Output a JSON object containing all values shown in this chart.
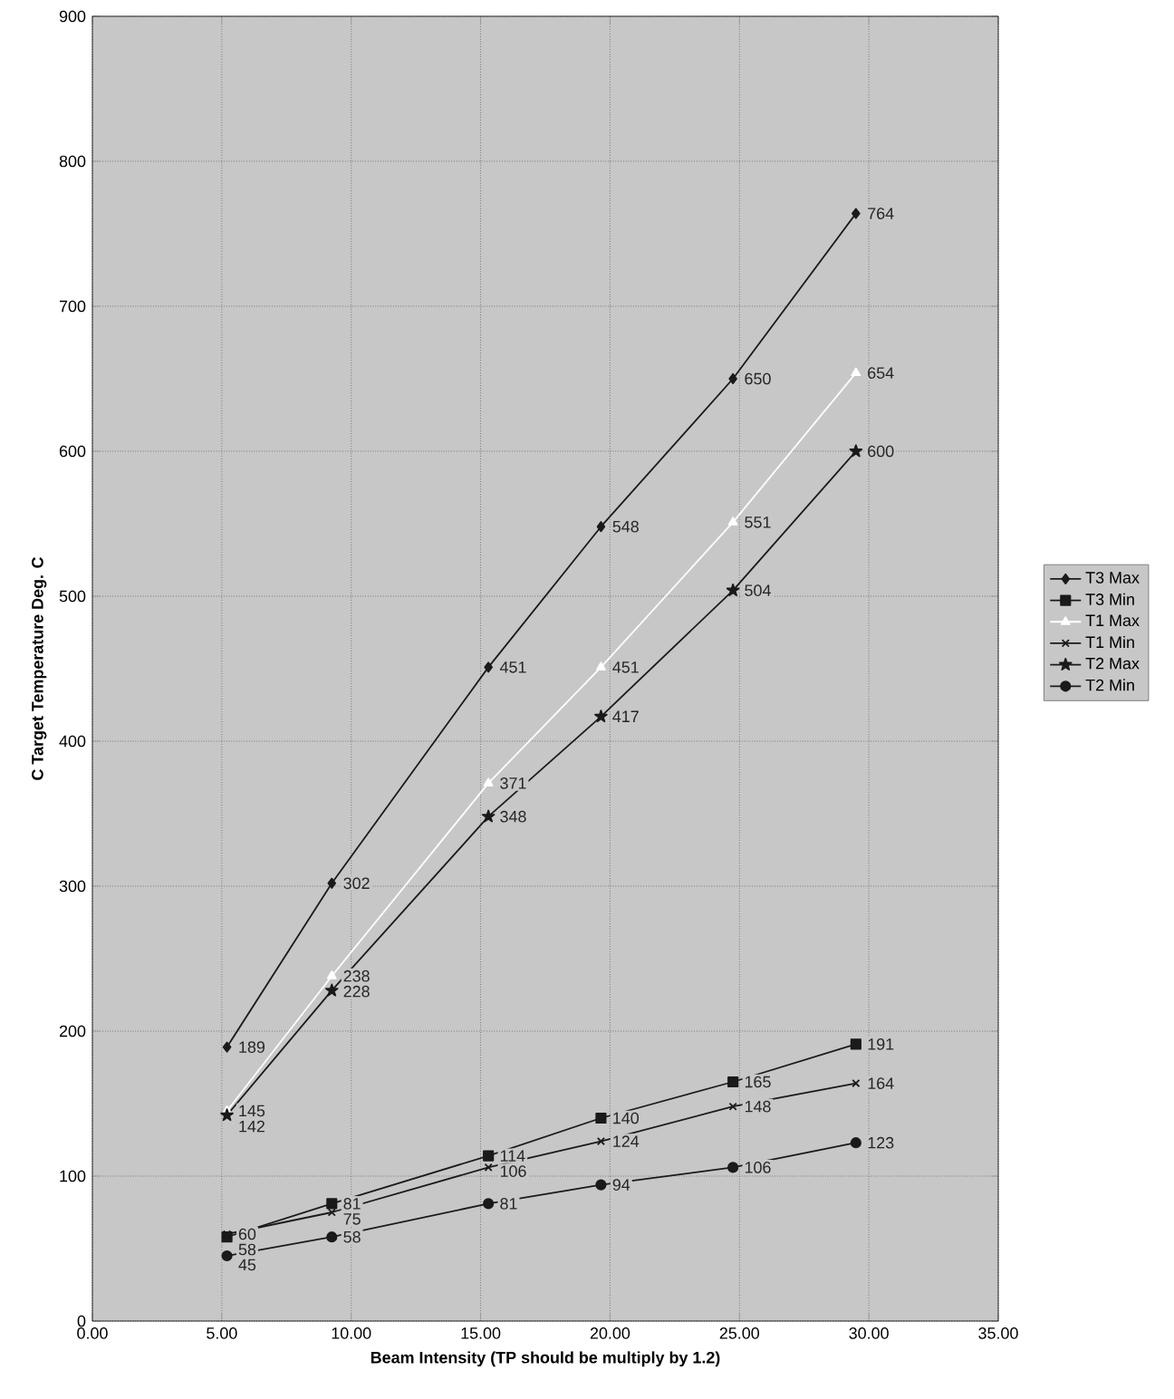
{
  "chart_data": {
    "type": "line",
    "xlabel": "Beam Intensity (TP should be multiply by 1.2)",
    "ylabel": "C Target Temperature Deg. C",
    "x": [
      5.2,
      9.25,
      15.3,
      19.65,
      24.75,
      29.5
    ],
    "series": [
      {
        "name": "T3 Max",
        "color": "#1a1a1a",
        "marker": "diamond",
        "values": [
          189,
          302,
          451,
          548,
          650,
          764
        ]
      },
      {
        "name": "T3 Min",
        "color": "#1a1a1a",
        "marker": "square",
        "values": [
          58,
          81,
          114,
          140,
          165,
          191
        ]
      },
      {
        "name": "T1 Max",
        "color": "#ffffff",
        "marker": "triangle",
        "values": [
          145,
          238,
          371,
          451,
          551,
          654
        ]
      },
      {
        "name": "T1 Min",
        "color": "#1a1a1a",
        "marker": "cross",
        "values": [
          60,
          75,
          106,
          124,
          148,
          164
        ]
      },
      {
        "name": "T2 Max",
        "color": "#1a1a1a",
        "marker": "star",
        "values": [
          142,
          228,
          348,
          417,
          504,
          600
        ]
      },
      {
        "name": "T2 Min",
        "color": "#1a1a1a",
        "marker": "circle",
        "values": [
          45,
          58,
          81,
          94,
          106,
          123
        ]
      }
    ],
    "xlim": [
      0,
      35
    ],
    "ylim": [
      0,
      900
    ],
    "xticks": [
      {
        "value": 0,
        "label": "0.00"
      },
      {
        "value": 5,
        "label": "5.00"
      },
      {
        "value": 10,
        "label": "10.00"
      },
      {
        "value": 15,
        "label": "15.00"
      },
      {
        "value": 20,
        "label": "20.00"
      },
      {
        "value": 25,
        "label": "25.00"
      },
      {
        "value": 30,
        "label": "30.00"
      },
      {
        "value": 35,
        "label": "35.00"
      }
    ],
    "yticks": [
      0,
      100,
      200,
      300,
      400,
      500,
      600,
      700,
      800,
      900
    ],
    "grid": true,
    "legend": "right",
    "data_labels": true,
    "line_style": "solid"
  }
}
